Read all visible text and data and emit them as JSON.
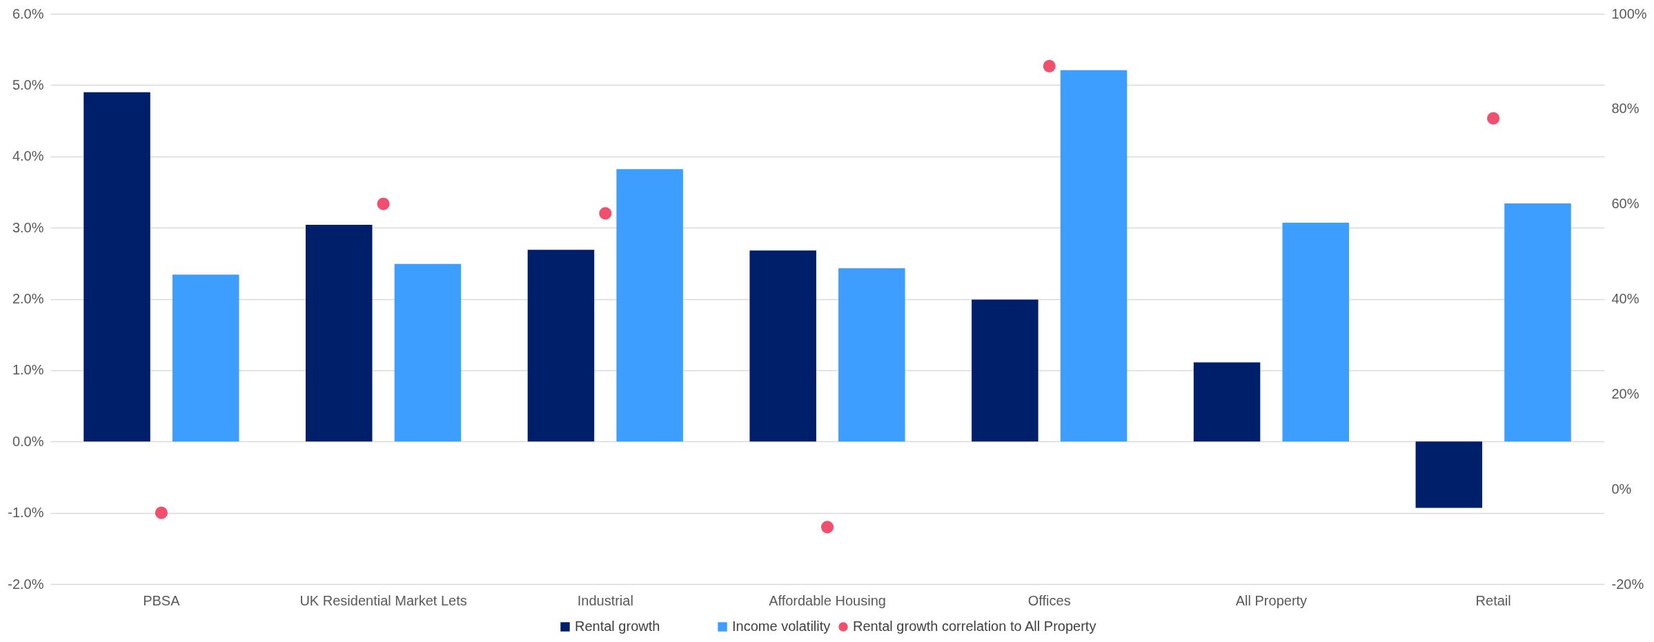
{
  "chart_data": {
    "type": "bar",
    "categories": [
      "PBSA",
      "UK Residential Market Lets",
      "Industrial",
      "Affordable Housing",
      "Offices",
      "All Property",
      "Retail"
    ],
    "series": [
      {
        "name": "Rental growth",
        "color": "#001f6b",
        "values": [
          4.9,
          3.04,
          2.69,
          2.68,
          1.99,
          1.11,
          -0.93
        ]
      },
      {
        "name": "Income volatility",
        "color": "#3d9eff",
        "values": [
          2.34,
          2.49,
          3.82,
          2.43,
          5.21,
          3.07,
          3.34
        ]
      },
      {
        "name": "Rental growth correlation to All Property",
        "type": "scatter",
        "axis": "y2",
        "color": "#f0506e",
        "marker": "circle",
        "x": [
          "PBSA",
          "UK Residential Market Lets",
          "Industrial",
          "Affordable Housing",
          "Offices",
          "All Property",
          "Retail"
        ],
        "values": [
          -5,
          60,
          58,
          -8,
          89,
          null,
          78
        ]
      }
    ],
    "ylim": [
      -2,
      6
    ],
    "yticks": [
      {
        "value": -2,
        "label": "-2.0%"
      },
      {
        "value": -1,
        "label": "-1.0%"
      },
      {
        "value": 0,
        "label": "0.0%"
      },
      {
        "value": 1,
        "label": "1.0%"
      },
      {
        "value": 2,
        "label": "2.0%"
      },
      {
        "value": 3,
        "label": "3.0%"
      },
      {
        "value": 4,
        "label": "4.0%"
      },
      {
        "value": 5,
        "label": "5.0%"
      },
      {
        "value": 6,
        "label": "6.0%"
      }
    ],
    "y2lim": [
      -20,
      100
    ],
    "y2ticks": [
      {
        "value": -20,
        "label": "-20%"
      },
      {
        "value": 0,
        "label": "0%"
      },
      {
        "value": 20,
        "label": "20%"
      },
      {
        "value": 40,
        "label": "40%"
      },
      {
        "value": 60,
        "label": "60%"
      },
      {
        "value": 80,
        "label": "80%"
      },
      {
        "value": 100,
        "label": "100%"
      }
    ],
    "grid": "y",
    "legend": "bottom"
  }
}
